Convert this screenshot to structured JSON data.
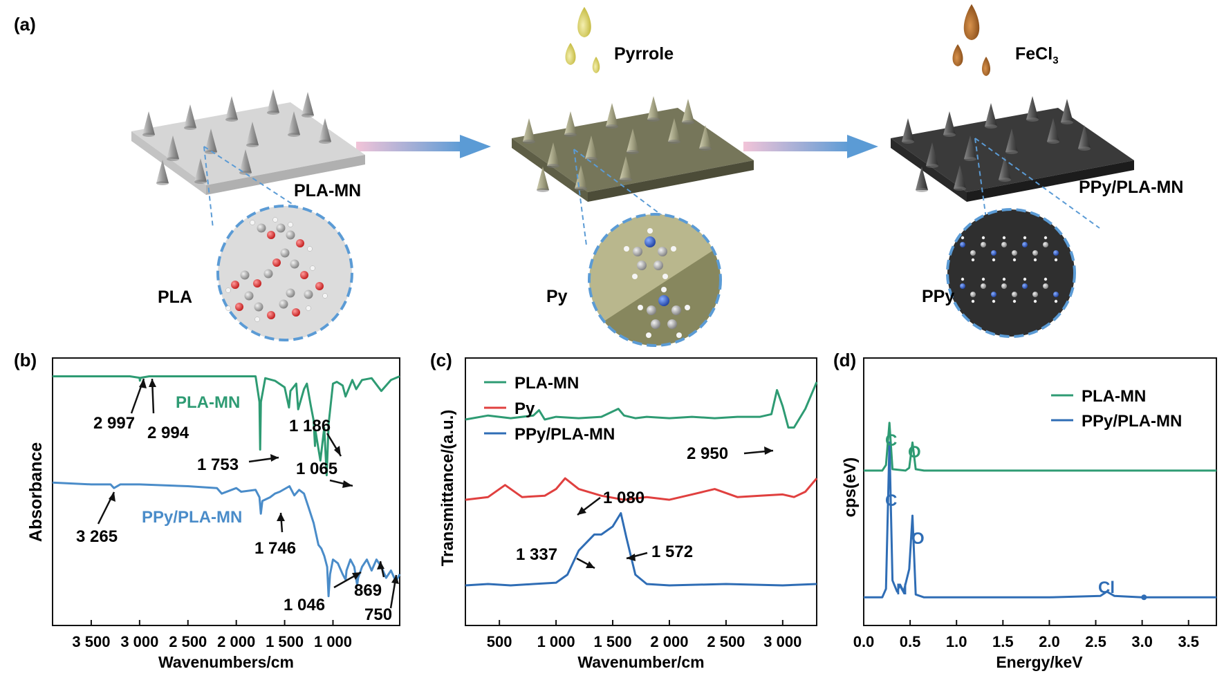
{
  "panel_a": {
    "label": "(a)",
    "reagent_1": "Pyrrole",
    "reagent_2_base": "FeCl",
    "reagent_2_sub": "3",
    "stage_labels": [
      "PLA-MN",
      "PPy/PLA-MN"
    ],
    "molecule_labels": [
      "PLA",
      "Py",
      "PPy"
    ],
    "colors": {
      "pla_plate": "#c9c9c9",
      "py_plate": "#6b6b4d",
      "ppy_plate": "#2e2e2e",
      "pyrrole_drop": "#c8c23a",
      "fecl3_drop": "#9a5a1c",
      "arrow": "#5b9bd5"
    }
  },
  "chart_data": [
    {
      "panel": "(b)",
      "type": "line",
      "xlabel": "Wavenumbers/cm",
      "ylabel": "Absorbance",
      "x_reversed": true,
      "xlim": [
        3900,
        310
      ],
      "xticks": [
        3500,
        3000,
        2500,
        2000,
        1500,
        1000
      ],
      "xtick_labels": [
        "3 500",
        "3 000",
        "2 500",
        "2 000",
        "1 500",
        "1 000"
      ],
      "series": [
        {
          "name": "PLA-MN",
          "color": "#2e9b73",
          "x": [
            3900,
            3100,
            3000,
            2997,
            2994,
            2990,
            2900,
            2000,
            1800,
            1760,
            1753,
            1745,
            1700,
            1600,
            1500,
            1455,
            1440,
            1380,
            1360,
            1300,
            1270,
            1230,
            1200,
            1186,
            1180,
            1130,
            1090,
            1065,
            1045,
            1000,
            960,
            900,
            870,
            800,
            760,
            700,
            600,
            500,
            400,
            310
          ],
          "y": [
            0.0,
            0.0,
            -0.04,
            -0.12,
            -0.1,
            -0.04,
            0.0,
            0.0,
            0.0,
            -0.7,
            -2.0,
            -0.7,
            -0.05,
            -0.12,
            -0.3,
            -0.85,
            -0.4,
            -0.2,
            -0.9,
            -0.35,
            -0.2,
            -0.8,
            -1.2,
            -1.9,
            -1.5,
            -2.3,
            -1.4,
            -2.7,
            -1.3,
            -0.2,
            -0.15,
            -0.25,
            -0.55,
            -0.1,
            -0.35,
            -0.1,
            -0.05,
            -0.4,
            -0.1,
            0.0
          ]
        },
        {
          "name": "PPy/PLA-MN",
          "color": "#4a8cc9",
          "x": [
            3900,
            3500,
            3300,
            3265,
            3200,
            3000,
            2500,
            2200,
            2150,
            2000,
            1950,
            1800,
            1760,
            1746,
            1730,
            1650,
            1600,
            1550,
            1450,
            1400,
            1350,
            1300,
            1250,
            1200,
            1150,
            1120,
            1090,
            1060,
            1046,
            1030,
            1000,
            950,
            900,
            880,
            869,
            860,
            820,
            780,
            750,
            740,
            700,
            650,
            600,
            550,
            500,
            450,
            400,
            350,
            310
          ],
          "y": [
            -2.9,
            -2.95,
            -2.95,
            -3.05,
            -2.95,
            -2.95,
            -3.0,
            -3.05,
            -3.2,
            -3.05,
            -3.15,
            -3.1,
            -3.3,
            -3.75,
            -3.4,
            -3.3,
            -3.2,
            -3.15,
            -3.0,
            -3.25,
            -3.1,
            -3.2,
            -3.6,
            -4.0,
            -4.6,
            -4.7,
            -4.9,
            -5.2,
            -6.0,
            -5.4,
            -5.0,
            -5.1,
            -5.4,
            -5.5,
            -5.55,
            -5.3,
            -5.0,
            -5.2,
            -5.7,
            -5.5,
            -5.2,
            -5.0,
            -5.3,
            -5.0,
            -5.2,
            -5.5,
            -5.3,
            -5.6,
            -5.4
          ]
        }
      ],
      "series_labels": [
        "PLA-MN",
        "PPy/PLA-MN"
      ],
      "annotations": [
        "2 997",
        "2 994",
        "1 753",
        "1 186",
        "1 065",
        "3 265",
        "1 746",
        "1 046",
        "869",
        "750"
      ]
    },
    {
      "panel": "(c)",
      "type": "line",
      "xlabel": "Wavenumber/cm",
      "ylabel": "Transmittance/(a.u.)",
      "xlim": [
        200,
        3300
      ],
      "xticks": [
        500,
        1000,
        1500,
        2000,
        2500,
        3000
      ],
      "xtick_labels": [
        "500",
        "1 000",
        "1 500",
        "2 000",
        "2 500",
        "3 000"
      ],
      "legend_position": "top-left",
      "series": [
        {
          "name": "PLA-MN",
          "color": "#2e9b73",
          "x": [
            200,
            400,
            600,
            800,
            850,
            900,
            1000,
            1200,
            1400,
            1500,
            1550,
            1600,
            1700,
            1800,
            2000,
            2200,
            2400,
            2600,
            2800,
            2900,
            2950,
            3000,
            3050,
            3100,
            3200,
            3300
          ],
          "y": [
            7.2,
            7.35,
            7.25,
            7.35,
            7.55,
            7.2,
            7.3,
            7.25,
            7.3,
            7.5,
            7.6,
            7.35,
            7.25,
            7.3,
            7.25,
            7.3,
            7.25,
            7.3,
            7.3,
            7.4,
            8.3,
            7.7,
            6.9,
            6.9,
            7.6,
            8.6
          ]
        },
        {
          "name": "Py",
          "color": "#e0403f",
          "x": [
            200,
            400,
            550,
            700,
            900,
            1000,
            1080,
            1200,
            1400,
            1600,
            1800,
            2000,
            2200,
            2400,
            2600,
            2800,
            3000,
            3100,
            3200,
            3300
          ],
          "y": [
            4.2,
            4.3,
            4.75,
            4.3,
            4.35,
            4.6,
            5.0,
            4.6,
            4.35,
            4.2,
            4.3,
            4.2,
            4.4,
            4.6,
            4.3,
            4.35,
            4.4,
            4.3,
            4.5,
            5.0
          ]
        },
        {
          "name": "PPy/PLA-MN",
          "color": "#2f6db5",
          "x": [
            200,
            400,
            600,
            800,
            1000,
            1100,
            1200,
            1337,
            1400,
            1500,
            1572,
            1620,
            1700,
            1800,
            2000,
            2500,
            3000,
            3300
          ],
          "y": [
            1.0,
            1.05,
            1.0,
            1.05,
            1.1,
            1.4,
            2.3,
            2.9,
            2.9,
            3.2,
            3.7,
            2.8,
            1.4,
            1.05,
            1.0,
            1.05,
            1.0,
            1.05
          ]
        }
      ],
      "annotations": [
        "2 950",
        "1 080",
        "1 337",
        "1 572"
      ]
    },
    {
      "panel": "(d)",
      "type": "line",
      "xlabel": "Energy/keV",
      "ylabel": "cps(eV)",
      "xlim": [
        0.0,
        3.8
      ],
      "xticks": [
        0.0,
        0.5,
        1.0,
        1.5,
        2.0,
        2.5,
        3.0,
        3.5
      ],
      "xtick_labels": [
        "0.0",
        "0.5",
        "1.0",
        "1.5",
        "2.0",
        "2.5",
        "3.0",
        "3.5"
      ],
      "legend_position": "top-right",
      "series": [
        {
          "name": "PLA-MN",
          "color": "#2e9b73",
          "x": [
            0.0,
            0.2,
            0.24,
            0.277,
            0.31,
            0.45,
            0.49,
            0.525,
            0.56,
            0.65,
            1.0,
            2.0,
            3.0,
            3.8
          ],
          "y": [
            5.5,
            5.5,
            5.7,
            7.2,
            5.55,
            5.5,
            5.6,
            6.5,
            5.55,
            5.5,
            5.5,
            5.5,
            5.5,
            5.5
          ]
        },
        {
          "name": "PPy/PLA-MN",
          "color": "#2f6db5",
          "x": [
            0.0,
            0.2,
            0.24,
            0.277,
            0.31,
            0.36,
            0.392,
            0.43,
            0.49,
            0.525,
            0.56,
            0.65,
            1.0,
            2.0,
            2.55,
            2.62,
            2.7,
            3.0,
            3.8
          ],
          "y": [
            1.0,
            1.0,
            1.3,
            6.5,
            1.6,
            1.2,
            1.45,
            1.2,
            2.0,
            3.9,
            1.1,
            1.0,
            1.0,
            1.0,
            1.05,
            1.2,
            1.05,
            1.0,
            1.0
          ]
        }
      ],
      "peak_labels": [
        "C",
        "O",
        "C",
        "N",
        "O",
        "Cl"
      ]
    }
  ]
}
